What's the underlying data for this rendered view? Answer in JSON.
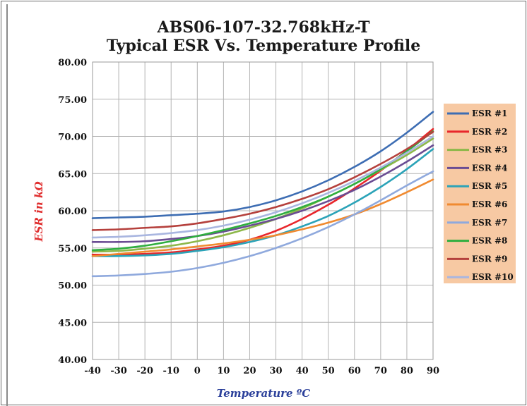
{
  "chart_data": {
    "type": "line",
    "title": "ABS06-107-32.768kHz-T",
    "subtitle": "Typical ESR Vs. Temperature Profile",
    "xlabel": "Temperature ºC",
    "ylabel": "ESR in kΩ",
    "xlim": [
      -40,
      90
    ],
    "ylim": [
      40,
      80
    ],
    "x_ticks": [
      "-40",
      "-30",
      "-20",
      "-10",
      "0",
      "10",
      "20",
      "30",
      "40",
      "50",
      "60",
      "70",
      "80",
      "90"
    ],
    "y_ticks": [
      "40.00",
      "45.00",
      "50.00",
      "55.00",
      "60.00",
      "65.00",
      "70.00",
      "75.00",
      "80.00"
    ],
    "grid": true,
    "legend_position": "right",
    "legend_background": "#f7c9a3",
    "x": [
      -40,
      -30,
      -20,
      -10,
      0,
      10,
      20,
      30,
      40,
      50,
      60,
      70,
      80,
      90
    ],
    "series": [
      {
        "name": "ESR #1",
        "color": "#3d6db3",
        "values": [
          59.0,
          59.1,
          59.2,
          59.4,
          59.6,
          59.9,
          60.5,
          61.4,
          62.6,
          64.1,
          65.9,
          68.0,
          70.5,
          73.3
        ]
      },
      {
        "name": "ESR #2",
        "color": "#e8262b",
        "values": [
          54.1,
          54.1,
          54.2,
          54.4,
          54.8,
          55.3,
          56.1,
          57.3,
          58.9,
          60.8,
          63.0,
          65.4,
          68.1,
          71.0
        ]
      },
      {
        "name": "ESR #3",
        "color": "#8db84a",
        "values": [
          54.5,
          54.6,
          54.9,
          55.3,
          55.9,
          56.7,
          57.7,
          58.9,
          60.3,
          61.9,
          63.6,
          65.5,
          67.5,
          69.7
        ]
      },
      {
        "name": "ESR #4",
        "color": "#6a4c93",
        "values": [
          55.8,
          55.8,
          55.9,
          56.2,
          56.6,
          57.2,
          58.0,
          58.9,
          60.0,
          61.3,
          62.8,
          64.6,
          66.6,
          68.8
        ]
      },
      {
        "name": "ESR #5",
        "color": "#2ba3b8",
        "values": [
          53.9,
          53.9,
          54.0,
          54.2,
          54.6,
          55.1,
          55.8,
          56.7,
          57.9,
          59.3,
          61.1,
          63.2,
          65.6,
          68.3
        ]
      },
      {
        "name": "ESR #6",
        "color": "#f08a30",
        "values": [
          53.9,
          54.2,
          54.5,
          54.8,
          55.2,
          55.6,
          56.1,
          56.7,
          57.5,
          58.4,
          59.5,
          60.9,
          62.5,
          64.2
        ]
      },
      {
        "name": "ESR #7",
        "color": "#8fa9dd",
        "values": [
          51.2,
          51.3,
          51.5,
          51.8,
          52.3,
          53.0,
          53.9,
          55.0,
          56.3,
          57.8,
          59.5,
          61.4,
          63.4,
          65.3
        ]
      },
      {
        "name": "ESR #8",
        "color": "#2fae3f",
        "values": [
          54.7,
          54.9,
          55.3,
          55.9,
          56.6,
          57.4,
          58.3,
          59.3,
          60.5,
          61.9,
          63.6,
          65.6,
          68.0,
          70.7
        ]
      },
      {
        "name": "ESR #9",
        "color": "#b5403c",
        "values": [
          57.4,
          57.5,
          57.7,
          57.9,
          58.3,
          58.9,
          59.6,
          60.5,
          61.6,
          62.9,
          64.5,
          66.3,
          68.3,
          70.6
        ]
      },
      {
        "name": "ESR #10",
        "color": "#a9b6e0",
        "values": [
          56.4,
          56.5,
          56.7,
          57.0,
          57.4,
          58.0,
          58.8,
          59.8,
          61.0,
          62.4,
          64.0,
          65.8,
          67.8,
          70.0
        ]
      }
    ]
  }
}
